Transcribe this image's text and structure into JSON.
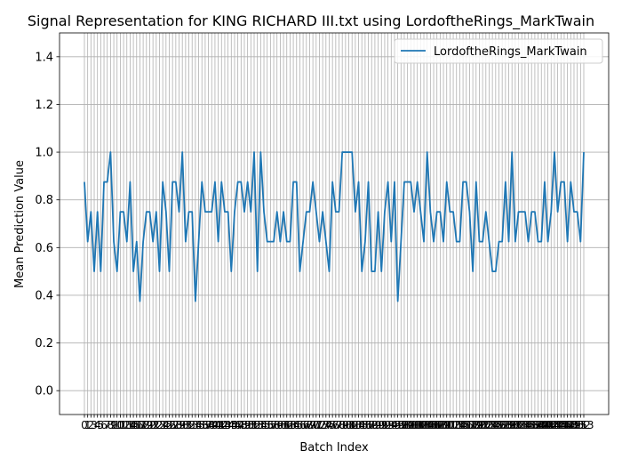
{
  "chart_data": {
    "type": "line",
    "title": "Signal Representation for KING RICHARD III.txt using LordoftheRings_MarkTwain",
    "xlabel": "Batch Index",
    "ylabel": "Mean Prediction Value",
    "ylim": [
      -0.1,
      1.5
    ],
    "yticks": [
      0.0,
      0.2,
      0.4,
      0.6,
      0.8,
      1.0,
      1.2,
      1.4
    ],
    "ytick_labels": [
      "0.0",
      "0.2",
      "0.4",
      "0.6",
      "0.8",
      "1.0",
      "1.2",
      "1.4"
    ],
    "grid": true,
    "legend_position": "top-right",
    "series": [
      {
        "name": "LordoftheRings_MarkTwain",
        "color": "#1f77b4",
        "values": [
          0.875,
          0.625,
          0.75,
          0.5,
          0.75,
          0.5,
          0.875,
          0.875,
          1.0,
          0.625,
          0.5,
          0.75,
          0.75,
          0.625,
          0.875,
          0.5,
          0.625,
          0.375,
          0.625,
          0.75,
          0.75,
          0.625,
          0.75,
          0.5,
          0.875,
          0.75,
          0.5,
          0.875,
          0.875,
          0.75,
          1.0,
          0.625,
          0.75,
          0.75,
          0.375,
          0.625,
          0.875,
          0.75,
          0.75,
          0.75,
          0.875,
          0.625,
          0.875,
          0.75,
          0.75,
          0.5,
          0.75,
          0.875,
          0.875,
          0.75,
          0.875,
          0.75,
          1.0,
          0.5,
          1.0,
          0.75,
          0.625,
          0.625,
          0.625,
          0.75,
          0.625,
          0.75,
          0.625,
          0.625,
          0.875,
          0.875,
          0.5,
          0.625,
          0.75,
          0.75,
          0.875,
          0.75,
          0.625,
          0.75,
          0.625,
          0.5,
          0.875,
          0.75,
          0.75,
          1.0,
          1.0,
          1.0,
          1.0,
          0.75,
          0.875,
          0.5,
          0.625,
          0.875,
          0.5,
          0.5,
          0.75,
          0.5,
          0.75,
          0.875,
          0.625,
          0.875,
          0.375,
          0.625,
          0.875,
          0.875,
          0.875,
          0.75,
          0.875,
          0.75,
          0.625,
          1.0,
          0.75,
          0.625,
          0.75,
          0.75,
          0.625,
          0.875,
          0.75,
          0.75,
          0.625,
          0.625,
          0.875,
          0.875,
          0.75,
          0.5,
          0.875,
          0.625,
          0.625,
          0.75,
          0.625,
          0.5,
          0.5,
          0.625,
          0.625,
          0.875,
          0.625,
          1.0,
          0.625,
          0.75,
          0.75,
          0.75,
          0.625,
          0.75,
          0.75,
          0.625,
          0.625,
          0.875,
          0.625,
          0.75,
          1.0,
          0.75,
          0.875,
          0.875,
          0.625,
          0.875,
          0.75,
          0.75,
          0.625,
          1.0
        ]
      }
    ],
    "xtick_labels": [
      "0",
      "1",
      "2",
      "3",
      "4",
      "5",
      "6",
      "7",
      "8",
      "9",
      "10",
      "11",
      "12",
      "13",
      "14",
      "15",
      "16",
      "17",
      "18",
      "19",
      "20",
      "21",
      "22",
      "23",
      "24",
      "25",
      "26",
      "27",
      "28",
      "29",
      "30",
      "31",
      "32",
      "33",
      "34",
      "35",
      "36",
      "37",
      "38",
      "39",
      "40",
      "41",
      "42",
      "43",
      "44",
      "45",
      "46",
      "47",
      "48",
      "49",
      "50",
      "51",
      "52",
      "53",
      "54",
      "55",
      "56",
      "57",
      "58",
      "59",
      "60",
      "61",
      "62",
      "63",
      "64",
      "65",
      "66",
      "67",
      "68",
      "69",
      "70",
      "71",
      "72",
      "73",
      "74",
      "75",
      "76",
      "77",
      "78",
      "79",
      "80",
      "81",
      "82",
      "83",
      "84",
      "85",
      "86",
      "87",
      "88",
      "89",
      "90",
      "91",
      "92",
      "93",
      "94",
      "95",
      "96",
      "97",
      "98",
      "99",
      "100",
      "101",
      "102",
      "103",
      "104",
      "105",
      "106",
      "107",
      "108",
      "109",
      "110",
      "111",
      "112",
      "113",
      "114",
      "115",
      "116",
      "117",
      "118",
      "119",
      "120",
      "121",
      "122",
      "123",
      "124",
      "125",
      "126",
      "127",
      "128",
      "129",
      "130",
      "131",
      "132",
      "133",
      "134",
      "135",
      "136",
      "137",
      "138",
      "139",
      "140",
      "141",
      "142",
      "143",
      "144",
      "145",
      "146",
      "147",
      "148",
      "149",
      "150",
      "151",
      "152",
      "153"
    ]
  }
}
